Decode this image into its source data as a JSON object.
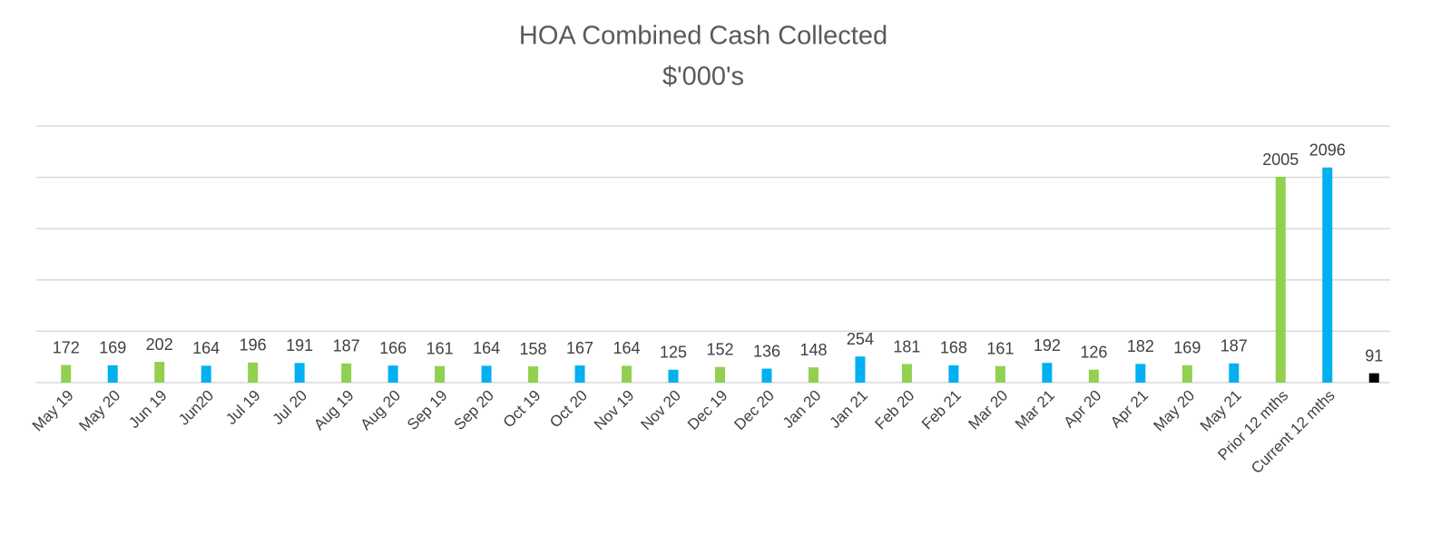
{
  "chart_data": {
    "type": "bar",
    "title": "HOA Combined Cash Collected",
    "subtitle": "$'000's",
    "categories": [
      "May 19",
      "May 20",
      "Jun 19",
      "Jun20",
      "Jul 19",
      "Jul 20",
      "Aug 19",
      "Aug 20",
      "Sep 19",
      "Sep 20",
      "Oct 19",
      "Oct 20",
      "Nov 19",
      "Nov 20",
      "Dec 19",
      "Dec 20",
      "Jan 20",
      "Jan 21",
      "Feb 20",
      "Feb 21",
      "Mar 20",
      "Mar 21",
      "Apr 20",
      "Apr 21",
      "May 20",
      "May 21",
      "Prior 12 mths",
      "Current 12 mths",
      null
    ],
    "values": [
      172,
      169,
      202,
      164,
      196,
      191,
      187,
      166,
      161,
      164,
      158,
      167,
      164,
      125,
      152,
      136,
      148,
      254,
      181,
      168,
      161,
      192,
      126,
      182,
      169,
      187,
      2005,
      2096,
      91
    ],
    "colors": [
      "#92d050",
      "#00b0f0",
      "#92d050",
      "#00b0f0",
      "#92d050",
      "#00b0f0",
      "#92d050",
      "#00b0f0",
      "#92d050",
      "#00b0f0",
      "#92d050",
      "#00b0f0",
      "#92d050",
      "#00b0f0",
      "#92d050",
      "#00b0f0",
      "#92d050",
      "#00b0f0",
      "#92d050",
      "#00b0f0",
      "#92d050",
      "#00b0f0",
      "#92d050",
      "#00b0f0",
      "#92d050",
      "#00b0f0",
      "#92d050",
      "#00b0f0",
      "#000000"
    ],
    "ylim": [
      0,
      2500
    ],
    "yticks": [
      0,
      500,
      1000,
      1500,
      2000,
      2500
    ],
    "grid": true
  }
}
